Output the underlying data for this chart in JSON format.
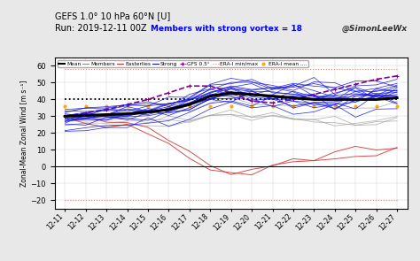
{
  "title_line1": "GEFS 1.0° 10 hPa 60°N [U]",
  "title_line2": "Run: 2019-12-11 00Z",
  "title_members": "Members with strong vortex = 18",
  "title_handle": "@SimonLeeWx",
  "ylabel": "Zonal-Mean Zonal Wind [m s⁻¹]",
  "ylim": [
    -25,
    65
  ],
  "yticks": [
    -20,
    -10,
    0,
    10,
    20,
    30,
    40,
    50,
    60
  ],
  "x_labels": [
    "12-11",
    "12-12",
    "12-13",
    "12-14",
    "12-15",
    "12-16",
    "12-17",
    "12-18",
    "12-19",
    "12-20",
    "12-21",
    "12-22",
    "12-23",
    "12-24",
    "12-25",
    "12-26",
    "12-27"
  ],
  "mean_color": "#000000",
  "member_color": "#aaaaaa",
  "easterly_color": "#cc3333",
  "strong_color": "#1111dd",
  "gfs_color": "#880088",
  "erai_minmax_color": "#cc8888",
  "erai_mean_color": "#ffaa00",
  "clim_color": "#000000",
  "bg_color": "#e8e8e8",
  "plot_bg": "#ffffff",
  "mean_line": [
    30,
    30.5,
    31,
    31.5,
    32.5,
    34,
    37,
    42,
    44,
    43,
    42,
    41,
    40,
    40,
    40,
    40,
    41
  ],
  "gfs_line": [
    30,
    32,
    34,
    37,
    40,
    44,
    48,
    48,
    44,
    39,
    38,
    40,
    43,
    46,
    49,
    52,
    54
  ],
  "erai_mean": [
    36,
    36,
    36,
    36,
    36,
    36,
    36,
    36,
    36,
    36,
    36,
    36,
    36,
    36,
    36,
    36,
    36
  ],
  "erai_max": [
    58,
    58,
    58,
    58,
    58,
    58,
    58,
    58,
    58,
    58,
    58,
    58,
    58,
    58,
    58,
    58,
    58
  ],
  "erai_min": [
    -20,
    -20,
    -20,
    -20,
    -20,
    -20,
    -20,
    -20,
    -20,
    -20,
    -20,
    -20,
    -20,
    -20,
    -20,
    -20,
    -20
  ],
  "clim": [
    40,
    40,
    40,
    40,
    40,
    40,
    40,
    40,
    40,
    40,
    40,
    40,
    40,
    40,
    40,
    40,
    40
  ],
  "easterly_base": [
    28,
    27,
    26,
    24,
    20,
    14,
    6,
    0,
    -5,
    -4,
    -1,
    2,
    4,
    6,
    7,
    8,
    9
  ],
  "strong_base": [
    29,
    30,
    31,
    32,
    33,
    35,
    38,
    43,
    45,
    44,
    43,
    42,
    41,
    41,
    41,
    42,
    43
  ],
  "weak_base": [
    30,
    30,
    30,
    30,
    31,
    32,
    33,
    35,
    36,
    35,
    34,
    33,
    32,
    32,
    32,
    32,
    32
  ]
}
